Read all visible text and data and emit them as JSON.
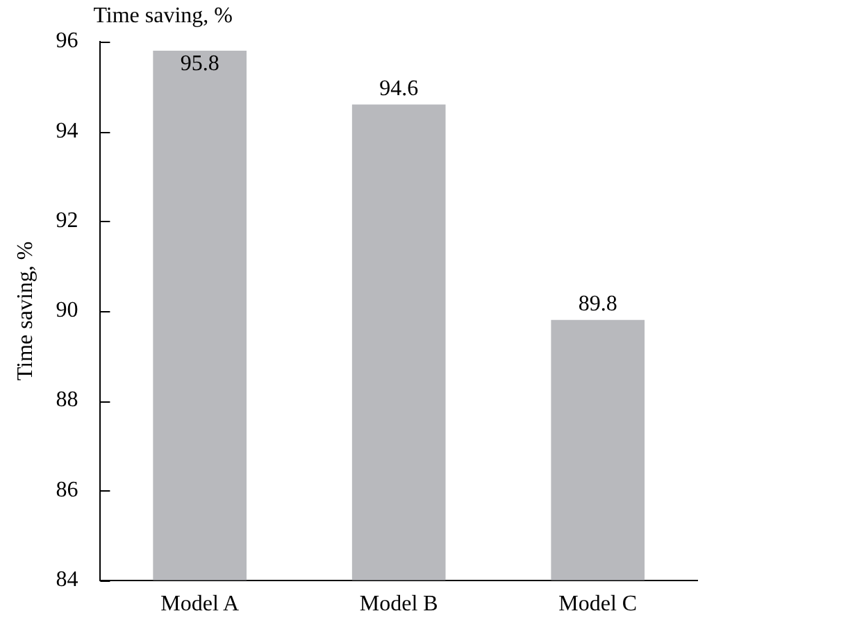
{
  "chart_data": {
    "type": "bar",
    "title": "Time saving, %",
    "ylabel": "Time saving, %",
    "categories": [
      "Model A",
      "Model B",
      "Model C"
    ],
    "values": [
      95.8,
      94.6,
      89.8
    ],
    "color": "#b8b9bd",
    "ylim": [
      84,
      96
    ],
    "yticks": [
      84,
      86,
      88,
      90,
      92,
      94,
      96
    ],
    "data_labels": true
  }
}
